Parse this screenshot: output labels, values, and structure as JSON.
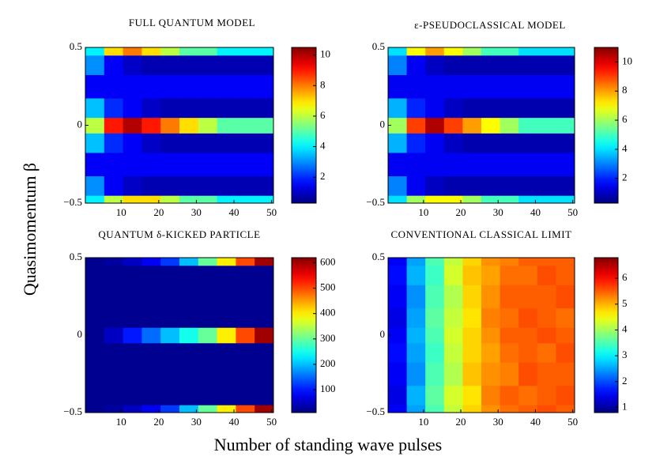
{
  "x_label": "Number of standing wave pulses",
  "y_label": "Quasimomentum β",
  "chart_data": [
    {
      "type": "heatmap",
      "title": "FULL QUANTUM MODEL",
      "colormap": "jet",
      "x": [
        3,
        8,
        13,
        18,
        23,
        28,
        33,
        38,
        43,
        48
      ],
      "y": [
        -0.5,
        -0.4,
        -0.25,
        -0.1,
        0,
        0.1,
        0.25,
        0.4,
        0.5
      ],
      "z": [
        [
          4,
          6,
          7,
          7,
          6,
          5,
          5,
          4,
          4,
          4
        ],
        [
          3,
          1.5,
          1,
          0.8,
          0.8,
          0.8,
          0.8,
          0.8,
          0.8,
          0.8
        ],
        [
          1.5,
          1.5,
          1.5,
          1.5,
          1.5,
          1.5,
          1.5,
          1.5,
          1.5,
          1.5
        ],
        [
          3.5,
          2,
          1.5,
          1,
          0.8,
          0.8,
          0.8,
          0.8,
          0.8,
          0.8
        ],
        [
          6,
          9,
          10,
          9,
          8,
          7,
          6,
          5,
          5,
          5
        ],
        [
          3.5,
          2,
          1.5,
          1,
          0.8,
          0.8,
          0.8,
          0.8,
          0.8,
          0.8
        ],
        [
          1.5,
          1.5,
          1.5,
          1.5,
          1.5,
          1.5,
          1.5,
          1.5,
          1.5,
          1.5
        ],
        [
          3,
          1.5,
          1,
          0.8,
          0.8,
          0.8,
          0.8,
          0.8,
          0.8,
          0.8
        ],
        [
          4,
          7,
          8,
          7,
          6,
          5,
          5,
          4,
          4,
          4
        ]
      ],
      "xlim": [
        0.5,
        50.5
      ],
      "ylim": [
        -0.5,
        0.5
      ],
      "xticks": [
        10,
        20,
        30,
        40,
        50
      ],
      "yticks": [
        {
          "value": -0.5,
          "label": "−0.5"
        },
        0,
        0.5
      ],
      "clim": [
        0.3,
        10.5
      ],
      "cticks": [
        2,
        4,
        6,
        8,
        10
      ]
    },
    {
      "type": "heatmap",
      "title": "ε-PSEUDOCLASSICAL MODEL",
      "colormap": "jet",
      "x": [
        3,
        8,
        13,
        18,
        23,
        28,
        33,
        38,
        43,
        48
      ],
      "y": [
        -0.5,
        -0.4,
        -0.25,
        -0.1,
        0,
        0.1,
        0.25,
        0.4,
        0.5
      ],
      "z": [
        [
          4,
          6,
          7,
          7,
          6,
          5,
          5,
          4,
          4,
          4
        ],
        [
          3,
          1.5,
          1,
          0.8,
          0.8,
          0.8,
          0.8,
          0.8,
          0.8,
          0.8
        ],
        [
          1.5,
          1.5,
          1.5,
          1.5,
          1.5,
          1.5,
          1.5,
          1.5,
          1.5,
          1.5
        ],
        [
          3.5,
          2,
          1.5,
          1,
          0.8,
          0.8,
          0.8,
          0.8,
          0.8,
          0.8
        ],
        [
          6,
          9,
          10.5,
          9,
          8,
          7,
          6,
          5,
          5,
          5
        ],
        [
          3.5,
          2,
          1.5,
          1,
          0.8,
          0.8,
          0.8,
          0.8,
          0.8,
          0.8
        ],
        [
          1.5,
          1.5,
          1.5,
          1.5,
          1.5,
          1.5,
          1.5,
          1.5,
          1.5,
          1.5
        ],
        [
          3,
          1.5,
          1,
          0.8,
          0.8,
          0.8,
          0.8,
          0.8,
          0.8,
          0.8
        ],
        [
          4,
          7,
          8,
          7,
          6,
          5,
          5,
          4,
          4,
          4
        ]
      ],
      "xlim": [
        0.5,
        50.5
      ],
      "ylim": [
        -0.5,
        0.5
      ],
      "xticks": [
        10,
        20,
        30,
        40,
        50
      ],
      "yticks": [
        {
          "value": -0.5,
          "label": "−0.5"
        },
        0,
        0.5
      ],
      "clim": [
        0.3,
        11
      ],
      "cticks": [
        2,
        4,
        6,
        8,
        10
      ]
    },
    {
      "type": "heatmap",
      "title": "QUANTUM δ-KICKED PARTICLE",
      "colormap": "jet",
      "x": [
        3,
        8,
        13,
        18,
        23,
        28,
        33,
        38,
        43,
        48
      ],
      "y": [
        -0.5,
        -0.4,
        -0.25,
        -0.1,
        0,
        0.1,
        0.25,
        0.4,
        0.5
      ],
      "z": [
        [
          20,
          30,
          50,
          80,
          120,
          200,
          300,
          400,
          500,
          600
        ],
        [
          20,
          20,
          20,
          20,
          20,
          20,
          20,
          20,
          20,
          20
        ],
        [
          20,
          20,
          20,
          20,
          20,
          20,
          20,
          20,
          20,
          20
        ],
        [
          20,
          20,
          20,
          20,
          20,
          20,
          20,
          20,
          20,
          20
        ],
        [
          20,
          50,
          100,
          150,
          200,
          250,
          300,
          400,
          500,
          600
        ],
        [
          20,
          20,
          20,
          20,
          20,
          20,
          20,
          20,
          20,
          20
        ],
        [
          20,
          20,
          20,
          20,
          20,
          20,
          20,
          20,
          20,
          20
        ],
        [
          20,
          20,
          20,
          20,
          20,
          20,
          20,
          20,
          20,
          20
        ],
        [
          20,
          30,
          50,
          80,
          120,
          200,
          300,
          400,
          500,
          600
        ]
      ],
      "xlim": [
        0.5,
        50.5
      ],
      "ylim": [
        -0.5,
        0.5
      ],
      "xticks": [
        10,
        20,
        30,
        40,
        50
      ],
      "yticks": [
        {
          "value": -0.5,
          "label": "−0.5"
        },
        0,
        0.5
      ],
      "clim": [
        10,
        620
      ],
      "cticks": [
        100,
        200,
        300,
        400,
        500,
        600
      ]
    },
    {
      "type": "heatmap",
      "title": "CONVENTIONAL CLASSICAL LIMIT",
      "colormap": "jet",
      "x": [
        3,
        8,
        13,
        18,
        23,
        28,
        33,
        38,
        43,
        48
      ],
      "y": [
        -0.5,
        -0.4,
        -0.25,
        -0.1,
        0,
        0.1,
        0.25,
        0.4,
        0.5
      ],
      "z": [
        [
          1.5,
          2.5,
          3.5,
          4.2,
          4.8,
          5.2,
          5.4,
          5.5,
          5.6,
          5.5
        ],
        [
          1.4,
          2.6,
          3.6,
          4.3,
          4.7,
          5.3,
          5.5,
          5.4,
          5.5,
          5.6
        ],
        [
          1.5,
          2.4,
          3.5,
          4.1,
          4.9,
          5.2,
          5.3,
          5.6,
          5.5,
          5.5
        ],
        [
          1.6,
          2.5,
          3.4,
          4.2,
          4.8,
          5.1,
          5.4,
          5.5,
          5.4,
          5.6
        ],
        [
          1.5,
          2.6,
          3.5,
          4.3,
          4.8,
          5.2,
          5.5,
          5.5,
          5.6,
          5.5
        ],
        [
          1.4,
          2.5,
          3.6,
          4.2,
          4.7,
          5.3,
          5.4,
          5.6,
          5.5,
          5.4
        ],
        [
          1.5,
          2.4,
          3.5,
          4.1,
          4.8,
          5.2,
          5.5,
          5.5,
          5.5,
          5.6
        ],
        [
          1.6,
          2.6,
          3.4,
          4.3,
          4.9,
          5.1,
          5.4,
          5.4,
          5.6,
          5.5
        ],
        [
          1.5,
          2.5,
          3.5,
          4.2,
          4.8,
          5.2,
          5.3,
          5.5,
          5.5,
          5.5
        ]
      ],
      "xlim": [
        0.5,
        50.5
      ],
      "ylim": [
        -0.5,
        0.5
      ],
      "xticks": [
        10,
        20,
        30,
        40,
        50
      ],
      "yticks": [
        {
          "value": -0.5,
          "label": "−0.5"
        },
        0,
        0.5
      ],
      "clim": [
        0.8,
        6.8
      ],
      "cticks": [
        1,
        2,
        3,
        4,
        5,
        6
      ]
    }
  ]
}
